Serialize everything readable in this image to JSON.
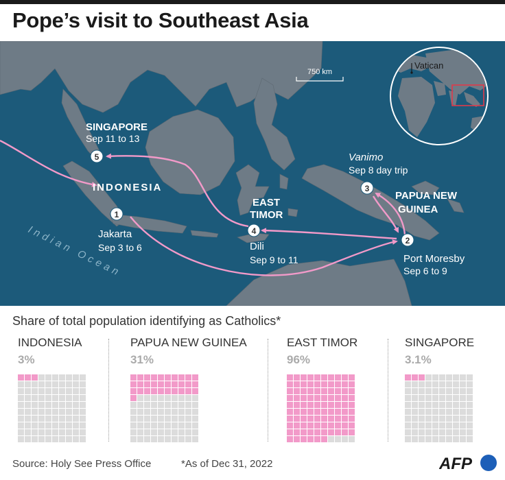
{
  "title": "Pope’s visit to Southeast Asia",
  "map": {
    "scale_label": "750 km",
    "ocean_label": "Indian Ocean",
    "inset_label": "Vatican",
    "country_labels": {
      "indonesia": "INDONESIA",
      "east_timor_1": "EAST",
      "east_timor_2": "TIMOR",
      "png_1": "PAPUA NEW",
      "png_2": "GUINEA",
      "singapore": "SINGAPORE"
    },
    "stops": [
      {
        "number": "1",
        "city": "Jakarta",
        "dates": "Sep 3 to 6"
      },
      {
        "number": "2",
        "city": "Port Moresby",
        "dates": "Sep 6 to 9"
      },
      {
        "number": "3",
        "city": "Vanimo",
        "dates": "Sep 8 day trip"
      },
      {
        "number": "4",
        "city": "Dili",
        "dates": "Sep 9 to 11"
      },
      {
        "number": "5",
        "city": "",
        "dates": "Sep 11 to 13"
      }
    ],
    "colors": {
      "sea": "#1c5a7a",
      "land": "#6e7b86",
      "route": "#f29ac9"
    }
  },
  "subtitle": "Share of total population identifying as Catholics*",
  "panels": [
    {
      "country": "INDONESIA",
      "pct_label": "3%",
      "value": 3
    },
    {
      "country": "PAPUA NEW GUINEA",
      "pct_label": "31%",
      "value": 31
    },
    {
      "country": "EAST TIMOR",
      "pct_label": "96%",
      "value": 96
    },
    {
      "country": "SINGAPORE",
      "pct_label": "3.1%",
      "value": 3.1
    }
  ],
  "footer": {
    "source": "Source: Holy See Press Office",
    "note": "*As of Dec 31, 2022",
    "logo": "AFP"
  }
}
